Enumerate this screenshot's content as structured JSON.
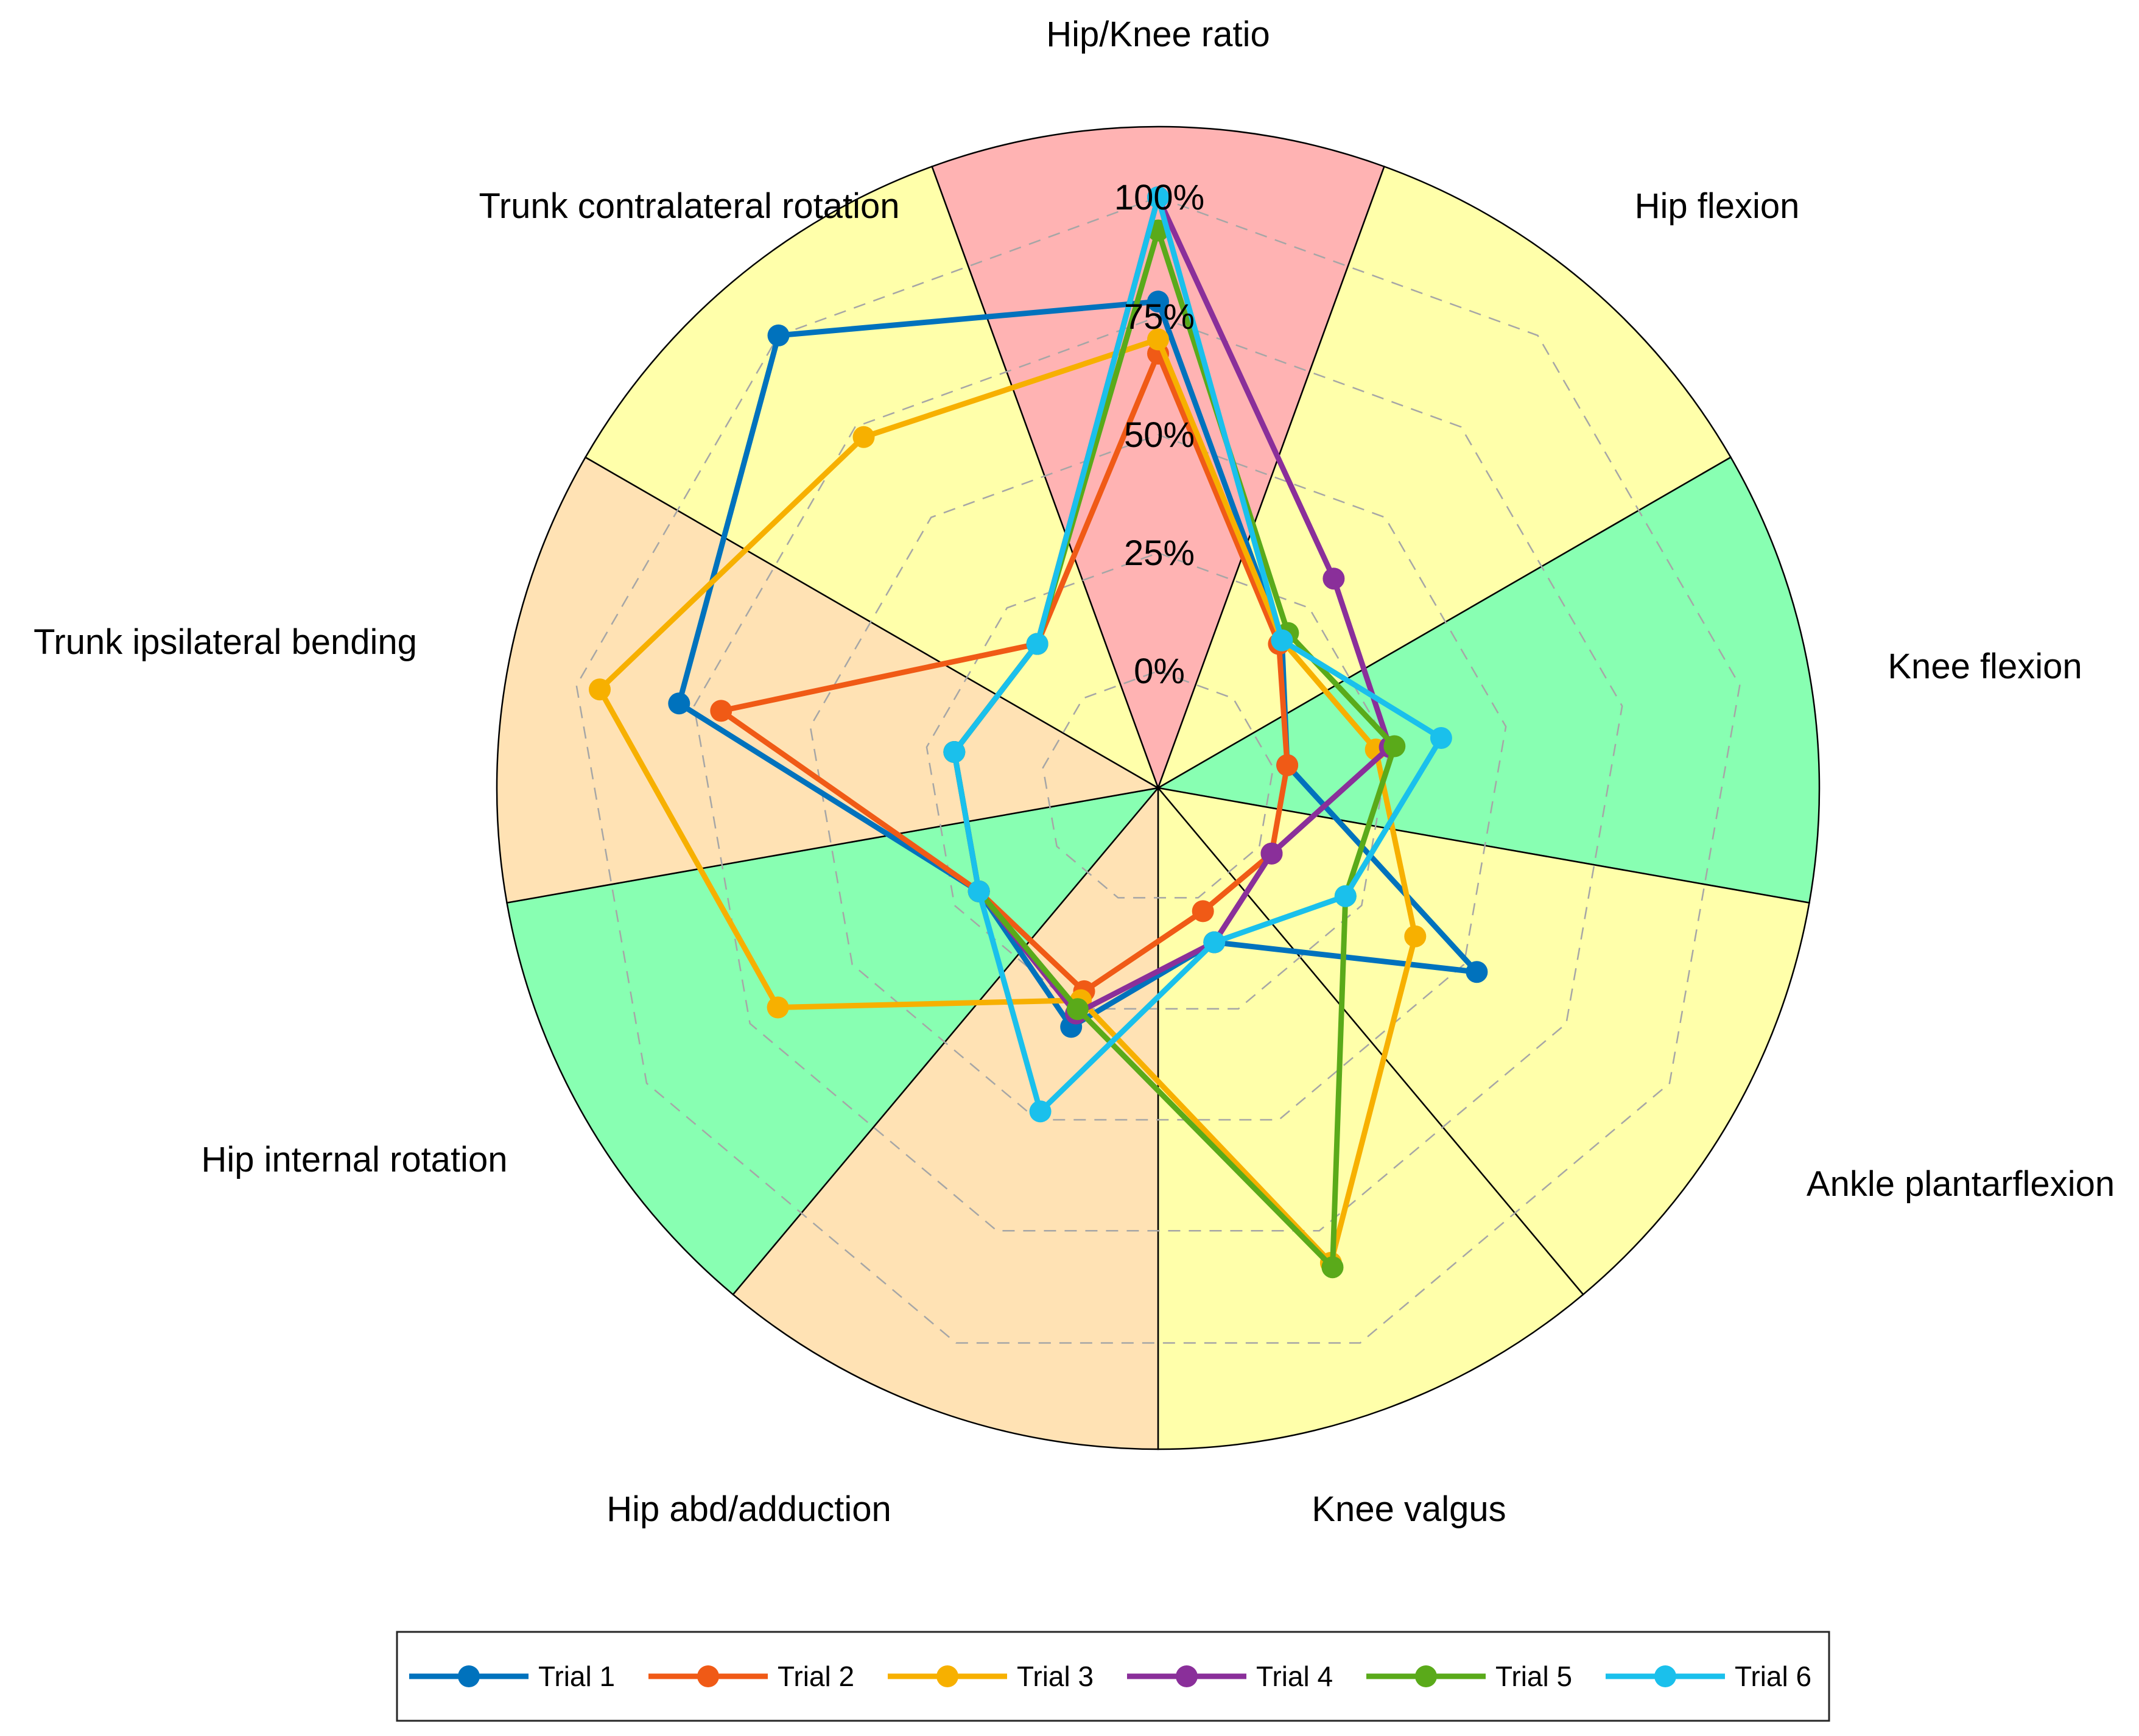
{
  "chart_data": {
    "type": "radar",
    "axes": [
      "Hip/Knee ratio",
      "Hip flexion",
      "Knee flexion",
      "Ankle plantarflexion",
      "Knee valgus",
      "Hip abd/adduction",
      "Hip internal rotation",
      "Trunk ipsilateral bending",
      "Trunk contralateral rotation"
    ],
    "sector_colors": [
      "#ffb3b3",
      "#ffffaa",
      "#88ffb2",
      "#ffffaa",
      "#ffffaa",
      "#ffe2b4",
      "#88ffb2",
      "#ffe2b4",
      "#ffffaa"
    ],
    "radial_ticks": [
      "0%",
      "25%",
      "50%",
      "75%",
      "100%"
    ],
    "radial_tick_values": [
      0,
      25,
      50,
      75,
      100
    ],
    "rlim": [
      0,
      100
    ],
    "grid": "dashed",
    "series": [
      {
        "name": "Trial 1",
        "color": "#0072bd",
        "values": [
          78,
          16,
          3,
          53,
          10,
          29,
          19,
          78,
          100
        ]
      },
      {
        "name": "Trial 2",
        "color": "#f05a16",
        "values": [
          67,
          15,
          3,
          3,
          3,
          21,
          19,
          69,
          15
        ]
      },
      {
        "name": "Trial 3",
        "color": "#f7b000",
        "values": [
          70,
          16,
          22,
          38,
          82,
          23,
          68,
          95,
          72
        ]
      },
      {
        "name": "Trial 4",
        "color": "#8a2f9a",
        "values": [
          100,
          33,
          25,
          3,
          10,
          26,
          19,
          19,
          15
        ]
      },
      {
        "name": "Trial 5",
        "color": "#5aaa1a",
        "values": [
          93,
          18,
          26,
          21,
          83,
          25,
          19,
          19,
          15
        ]
      },
      {
        "name": "Trial 6",
        "color": "#1ac0ec",
        "values": [
          100,
          16,
          36,
          21,
          10,
          48,
          19,
          19,
          15
        ]
      }
    ],
    "legend": "bottom"
  }
}
